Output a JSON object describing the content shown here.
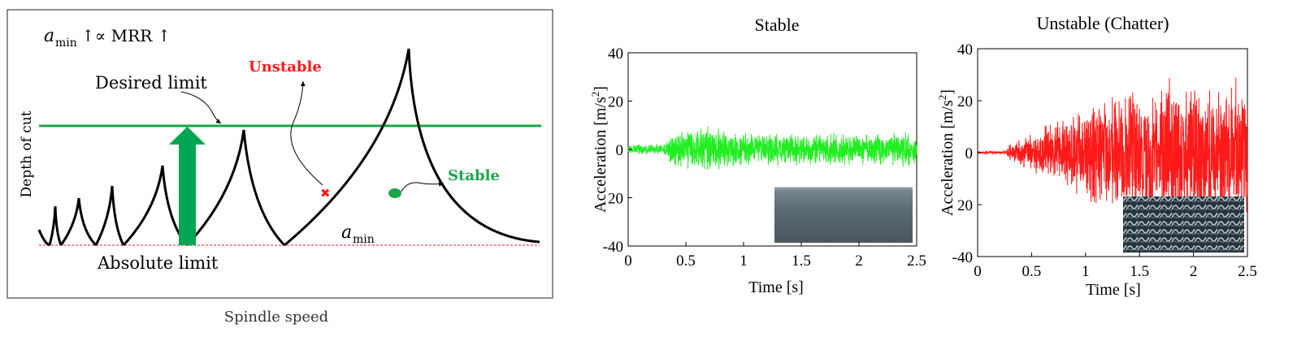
{
  "chart_data": [
    {
      "type": "line",
      "xlabel": "Spindle speed",
      "ylabel": "Depth of cut",
      "annotation_top": "a",
      "annotation_top_sub": "min",
      "annotation_top_rest": "↑∝ MRR ↑",
      "desired_limit_label": "Desired limit",
      "absolute_limit_label": "Absolute limit",
      "unstable_label": "Unstable",
      "stable_label": "Stable",
      "amin_label": "a",
      "amin_sub": "min",
      "colors": {
        "curve": "#000000",
        "desired": "#1aa64a",
        "arrow": "#00a651",
        "absolute": "#e02020",
        "unstable": "#ff1a1a",
        "stable": "#1aa64a"
      },
      "grid": false
    },
    {
      "type": "line",
      "title": "Stable",
      "xlabel": "Time [s]",
      "ylabel": "Acceleration [m/s²]",
      "ylabel_main": "Acceleration [m/s",
      "ylabel_sup": "2",
      "ylabel_end": "]",
      "xlim": [
        0,
        2.5
      ],
      "ylim": [
        -40,
        40
      ],
      "xticks": [
        "0",
        "0.5",
        "1",
        "1.5",
        "2",
        "2.5"
      ],
      "yticks": [
        "40",
        "20",
        "0",
        "20",
        "-40"
      ],
      "series_color": "#22ee22",
      "envelope": {
        "x": [
          0,
          0.3,
          0.35,
          0.7,
          1.0,
          1.5,
          2.0,
          2.5
        ],
        "amplitude": [
          2,
          2,
          6,
          9,
          7,
          6,
          6,
          7
        ]
      },
      "grid": false
    },
    {
      "type": "line",
      "title": "Unstable (Chatter)",
      "xlabel": "Time [s]",
      "ylabel": "Acceleration [m/s²]",
      "ylabel_main": "Acceleration [m/s",
      "ylabel_sup": "2",
      "ylabel_end": "]",
      "xlim": [
        0,
        2.5
      ],
      "ylim": [
        -40,
        40
      ],
      "xticks": [
        "0",
        "0.5",
        "1",
        "1.5",
        "2",
        "2.5"
      ],
      "yticks": [
        "40",
        "20",
        "0",
        "20",
        "-40"
      ],
      "series_color": "#ff1a1a",
      "envelope": {
        "x": [
          0,
          0.25,
          0.3,
          0.5,
          0.8,
          1.0,
          1.3,
          1.5,
          2.0,
          2.5
        ],
        "amplitude": [
          0.5,
          0.5,
          3,
          7,
          13,
          17,
          22,
          24,
          26,
          26
        ]
      },
      "grid": false
    }
  ]
}
